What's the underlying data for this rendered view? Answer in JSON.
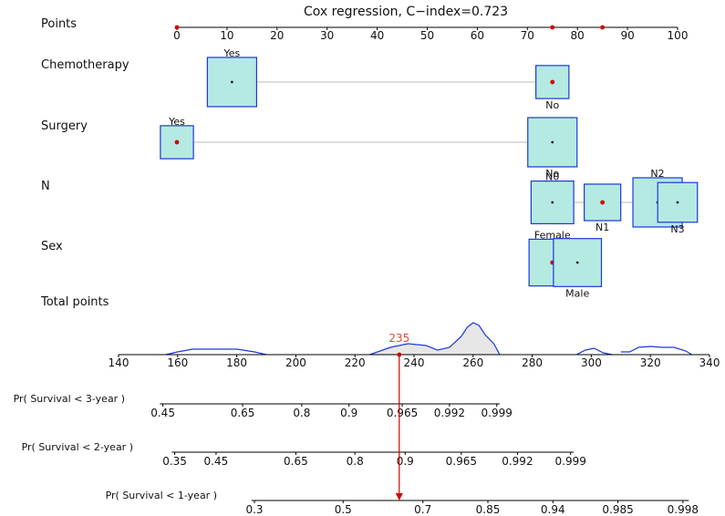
{
  "chart_data": {
    "type": "nomogram",
    "title": "Cox regression, C−index=0.723",
    "points_axis": {
      "label": "Points",
      "min": 0,
      "max": 100,
      "ticks": [
        0,
        10,
        20,
        30,
        40,
        50,
        60,
        70,
        80,
        90,
        100
      ],
      "highlighted_points": [
        0,
        75,
        85
      ]
    },
    "variables": [
      {
        "name": "Chemotherapy",
        "levels": [
          {
            "label": "Yes",
            "points": 11,
            "weight": 1.0,
            "label_pos": "above",
            "selected": false
          },
          {
            "label": "No",
            "points": 75,
            "weight": 0.45,
            "label_pos": "below",
            "selected": true
          }
        ]
      },
      {
        "name": "Surgery",
        "levels": [
          {
            "label": "Yes",
            "points": 0,
            "weight": 0.45,
            "label_pos": "above",
            "selected": true
          },
          {
            "label": "No",
            "points": 75,
            "weight": 1.0,
            "label_pos": "below",
            "selected": false
          }
        ]
      },
      {
        "name": "N",
        "levels": [
          {
            "label": "N0",
            "points": 75,
            "weight": 0.75,
            "label_pos": "above",
            "selected": false
          },
          {
            "label": "N1",
            "points": 85,
            "weight": 0.55,
            "label_pos": "below",
            "selected": true
          },
          {
            "label": "N2",
            "points": 96,
            "weight": 1.0,
            "label_pos": "above",
            "selected": false
          },
          {
            "label": "N3",
            "points": 100,
            "weight": 0.65,
            "label_pos": "below",
            "selected": false
          }
        ]
      },
      {
        "name": "Sex",
        "levels": [
          {
            "label": "Female",
            "points": 75,
            "weight": 0.9,
            "label_pos": "above",
            "selected": true
          },
          {
            "label": "Male",
            "points": 80,
            "weight": 0.95,
            "label_pos": "below",
            "selected": false
          }
        ]
      }
    ],
    "total_points_axis": {
      "label": "Total points",
      "min": 140,
      "max": 340,
      "ticks": [
        140,
        160,
        180,
        200,
        220,
        240,
        260,
        280,
        300,
        320,
        340
      ],
      "selected_total": 235,
      "selected_total_label": "235",
      "density": [
        [
          156,
          0
        ],
        [
          160,
          3
        ],
        [
          165,
          6
        ],
        [
          172,
          6
        ],
        [
          180,
          6
        ],
        [
          186,
          3
        ],
        [
          190,
          0
        ],
        [
          225,
          0
        ],
        [
          232,
          8
        ],
        [
          238,
          12
        ],
        [
          244,
          10
        ],
        [
          248,
          5
        ],
        [
          252,
          8
        ],
        [
          256,
          20
        ],
        [
          258,
          30
        ],
        [
          260,
          35
        ],
        [
          262,
          32
        ],
        [
          264,
          22
        ],
        [
          267,
          12
        ],
        [
          269,
          0
        ],
        [
          295,
          0
        ],
        [
          298,
          5
        ],
        [
          301,
          7
        ],
        [
          304,
          2
        ],
        [
          307,
          0
        ],
        [
          310,
          3
        ],
        [
          313,
          3
        ],
        [
          316,
          8
        ],
        [
          320,
          9
        ],
        [
          324,
          8
        ],
        [
          328,
          8
        ],
        [
          332,
          4
        ],
        [
          334,
          0
        ]
      ]
    },
    "survival_axes": [
      {
        "label": "Pr( Survival < 3-year )",
        "min_total": 154,
        "max_total": 269,
        "tick_labels": [
          "0.45",
          "0.65",
          "0.8",
          "0.9",
          "0.965",
          "0.992",
          "0.999"
        ],
        "tick_totals": [
          155,
          182,
          202,
          218,
          236,
          252,
          268
        ]
      },
      {
        "label": "Pr( Survival < 2-year )",
        "min_total": 158,
        "max_total": 294,
        "tick_labels": [
          "0.35",
          "0.45",
          "0.65",
          "0.8",
          "0.9",
          "0.965",
          "0.992",
          "0.999"
        ],
        "tick_totals": [
          159,
          173,
          200,
          220,
          237,
          256,
          275,
          293
        ]
      },
      {
        "label": "Pr( Survival < 1-year )",
        "min_total": 185,
        "max_total": 333,
        "tick_labels": [
          "0.3",
          "0.5",
          "0.7",
          "0.85",
          "0.94",
          "0.985",
          "0.998"
        ],
        "tick_totals": [
          186,
          216,
          243,
          265,
          287,
          309,
          331
        ]
      }
    ]
  }
}
